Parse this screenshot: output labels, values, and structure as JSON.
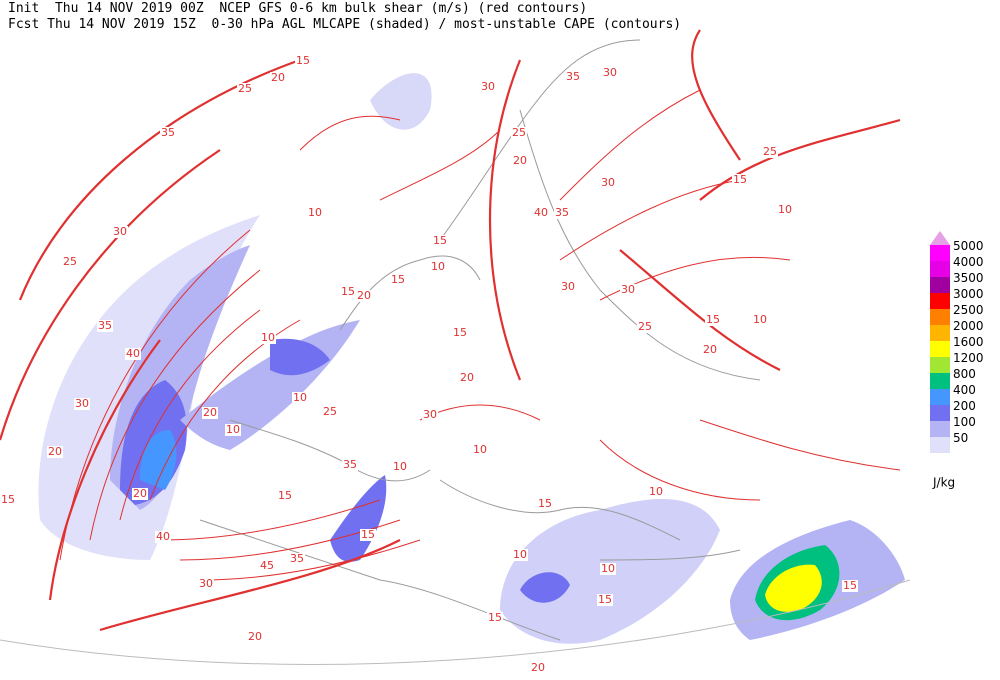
{
  "header": {
    "line1": "Init  Thu 14 NOV 2019 00Z  NCEP GFS 0-6 km bulk shear (m/s) (red contours)",
    "line2": "Fcst Thu 14 NOV 2019 15Z  0-30 hPa AGL MLCAPE (shaded) / most-unstable CAPE (contours)"
  },
  "legend": {
    "unit": "J/kg",
    "levels": [
      {
        "label": "5000",
        "color": "#ff00ff"
      },
      {
        "label": "4000",
        "color": "#e600e6"
      },
      {
        "label": "3500",
        "color": "#a000a0"
      },
      {
        "label": "3000",
        "color": "#ff0000"
      },
      {
        "label": "2500",
        "color": "#ff8000"
      },
      {
        "label": "2000",
        "color": "#ffb400"
      },
      {
        "label": "1600",
        "color": "#ffff00"
      },
      {
        "label": "1200",
        "color": "#a0e632"
      },
      {
        "label": "800",
        "color": "#00c080"
      },
      {
        "label": "400",
        "color": "#4696ff"
      },
      {
        "label": "200",
        "color": "#7070f0"
      },
      {
        "label": "100",
        "color": "#b4b4f5"
      },
      {
        "label": "50",
        "color": "#e0e0fa"
      }
    ]
  },
  "contour_labels": [
    15,
    20,
    25,
    35,
    30,
    25,
    35,
    40,
    30,
    20,
    15,
    20,
    20,
    10,
    10,
    10,
    10,
    15,
    20,
    15,
    10,
    15,
    15,
    20,
    25,
    20,
    40,
    35,
    30,
    35,
    30,
    30,
    25,
    15,
    10,
    10,
    15,
    20,
    25,
    30,
    30,
    10,
    15,
    10,
    10,
    15,
    10,
    15,
    15,
    20,
    20,
    30,
    35,
    45,
    40,
    15,
    35,
    10,
    30,
    25,
    15
  ]
}
